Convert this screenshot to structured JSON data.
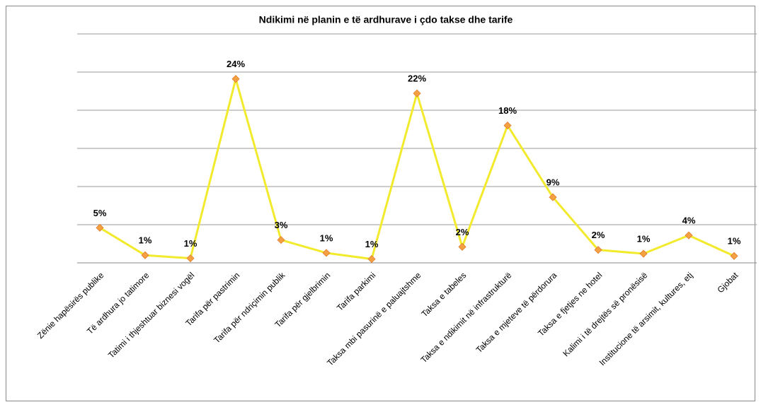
{
  "chart_data": {
    "type": "line",
    "title": "Ndikimi në planin e të ardhurave i çdo takse dhe tarife",
    "categories": [
      "Zënie hapësirës publike",
      "Të ardhura jo tatimore",
      "Tatimi i thjeshtuar biznesi vogël",
      "Tarifa për pastrimin",
      "Tarifa për ndriçimin publik",
      "Tarifa për gjelbrimin",
      "Tarifa parkimi",
      "Taksa mbi pasurinë  e paluajtshme",
      "Taksa e tabeles",
      "Taksa e ndikimit  në infrastrukturë",
      "Taksa e mjeteve të përdorura",
      "Taksa e fjetjes ne hotel",
      "Kalimi i të drejtës së pronësisë",
      "Institucione të arsimit, kultures, etj",
      "Gjobat"
    ],
    "values": [
      4.6,
      1.0,
      0.6,
      24.1,
      3.0,
      1.3,
      0.5,
      22.2,
      2.1,
      18.0,
      8.6,
      1.7,
      1.2,
      3.6,
      0.9
    ],
    "value_labels": [
      "5%",
      "1%",
      "1%",
      "24%",
      "3%",
      "1%",
      "1%",
      "22%",
      "2%",
      "18%",
      "9%",
      "2%",
      "1%",
      "4%",
      "1%"
    ],
    "color": "#f2ea2c",
    "marker_color": "#f5a142",
    "ylim": [
      0,
      30
    ],
    "yticks": [
      0,
      5,
      10,
      15,
      20,
      25,
      30
    ],
    "grid": true
  }
}
